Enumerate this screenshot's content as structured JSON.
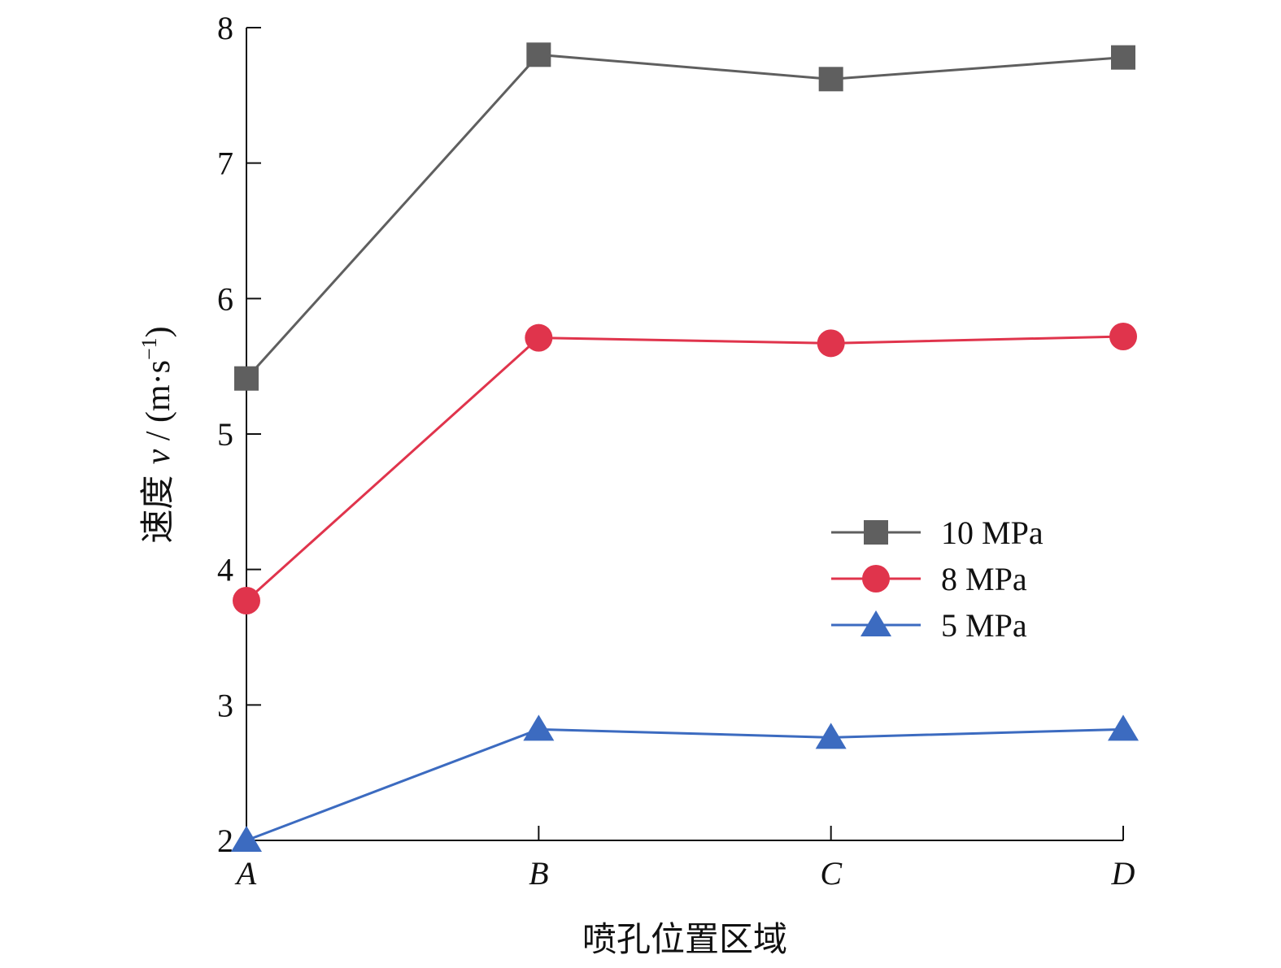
{
  "chart_data": {
    "type": "line",
    "categories": [
      "A",
      "B",
      "C",
      "D"
    ],
    "series": [
      {
        "name": "10 MPa",
        "values": [
          5.41,
          7.8,
          7.62,
          7.78
        ],
        "color": "#5f5f5f",
        "marker": "square"
      },
      {
        "name": "8 MPa",
        "values": [
          3.77,
          5.71,
          5.67,
          5.72
        ],
        "color": "#e0344c",
        "marker": "circle"
      },
      {
        "name": "5 MPa",
        "values": [
          2.0,
          2.82,
          2.76,
          2.82
        ],
        "color": "#3c6bc0",
        "marker": "triangle"
      }
    ],
    "xlabel": "喷孔位置区域",
    "ylabel_prefix": "速度 ",
    "ylabel_symbol": "v",
    "ylabel_unit": " / (m·s",
    "ylabel_exp": "−1",
    "ylabel_close": ")",
    "ylim": [
      2,
      8
    ],
    "yticks": [
      2,
      3,
      4,
      5,
      6,
      7,
      8
    ],
    "grid": false,
    "legend_position": "right-center"
  }
}
